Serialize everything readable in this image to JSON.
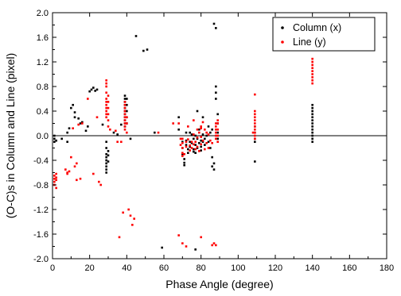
{
  "chart_data": {
    "type": "scatter",
    "title": "",
    "xlabel": "Phase Angle (degree)",
    "ylabel": "(O-C)s in Column and Line (pixel)",
    "xlim": [
      0,
      180
    ],
    "ylim": [
      -2.0,
      2.0
    ],
    "x_ticks": [
      0,
      20,
      40,
      60,
      80,
      100,
      120,
      140,
      160,
      180
    ],
    "x_tick_labels": [
      "0",
      "20",
      "40",
      "60",
      "80",
      "100",
      "120",
      "140",
      "160",
      "180"
    ],
    "y_ticks": [
      -2.0,
      -1.6,
      -1.2,
      -0.8,
      -0.4,
      0.0,
      0.4,
      0.8,
      1.2,
      1.6,
      2.0
    ],
    "y_tick_labels": [
      "-2.0",
      "-1.6",
      "-1.2",
      "-0.8",
      "-0.4",
      "0.0",
      "0.4",
      "0.8",
      "1.2",
      "1.6",
      "2.0"
    ],
    "reference_line_y": 0,
    "grid": false,
    "legend_position": "top-right",
    "series": [
      {
        "name": "Column (x)",
        "color": "#000000",
        "points": [
          [
            1,
            0.0
          ],
          [
            1,
            -0.05
          ],
          [
            1,
            -0.1
          ],
          [
            2,
            -0.08
          ],
          [
            5,
            -0.05
          ],
          [
            8,
            -0.1
          ],
          [
            8,
            0.05
          ],
          [
            9,
            0.12
          ],
          [
            10,
            0.45
          ],
          [
            11,
            0.5
          ],
          [
            12,
            0.38
          ],
          [
            12,
            0.3
          ],
          [
            14,
            0.28
          ],
          [
            15,
            0.2
          ],
          [
            16,
            0.22
          ],
          [
            18,
            0.08
          ],
          [
            19,
            0.15
          ],
          [
            20,
            0.72
          ],
          [
            21,
            0.75
          ],
          [
            22,
            0.78
          ],
          [
            23,
            0.73
          ],
          [
            24,
            0.75
          ],
          [
            27,
            0.18
          ],
          [
            29,
            -0.1
          ],
          [
            29,
            -0.2
          ],
          [
            29,
            -0.3
          ],
          [
            29,
            -0.35
          ],
          [
            29,
            -0.4
          ],
          [
            29,
            -0.45
          ],
          [
            29,
            -0.5
          ],
          [
            29,
            -0.55
          ],
          [
            29,
            -0.6
          ],
          [
            30,
            -0.25
          ],
          [
            30,
            -0.32
          ],
          [
            30,
            -0.42
          ],
          [
            33,
            0.05
          ],
          [
            35,
            0.02
          ],
          [
            37,
            0.18
          ],
          [
            39,
            0.65
          ],
          [
            39,
            0.6
          ],
          [
            39,
            0.55
          ],
          [
            39,
            0.5
          ],
          [
            39,
            0.45
          ],
          [
            39,
            0.4
          ],
          [
            39,
            0.35
          ],
          [
            39,
            0.3
          ],
          [
            39,
            0.25
          ],
          [
            39,
            0.2
          ],
          [
            39,
            0.15
          ],
          [
            40,
            0.6
          ],
          [
            40,
            0.5
          ],
          [
            40,
            0.4
          ],
          [
            40,
            0.3
          ],
          [
            40,
            0.2
          ],
          [
            42,
            -0.05
          ],
          [
            45,
            1.62
          ],
          [
            49,
            1.38
          ],
          [
            51,
            1.4
          ],
          [
            55,
            0.05
          ],
          [
            59,
            -1.82
          ],
          [
            68,
            0.3
          ],
          [
            68,
            0.1
          ],
          [
            70,
            -0.1
          ],
          [
            70,
            -0.2
          ],
          [
            70,
            -0.3
          ],
          [
            71,
            -0.38
          ],
          [
            71,
            -0.44
          ],
          [
            71,
            -0.48
          ],
          [
            72,
            0.05
          ],
          [
            72,
            -0.08
          ],
          [
            72,
            -0.15
          ],
          [
            73,
            -0.22
          ],
          [
            73,
            -0.28
          ],
          [
            74,
            0.05
          ],
          [
            74,
            -0.1
          ],
          [
            74,
            -0.18
          ],
          [
            75,
            0.02
          ],
          [
            75,
            -0.12
          ],
          [
            76,
            -0.05
          ],
          [
            76,
            -0.22
          ],
          [
            76,
            -0.26
          ],
          [
            77,
            0.0
          ],
          [
            77,
            -0.15
          ],
          [
            77,
            -0.28
          ],
          [
            78,
            0.4
          ],
          [
            78,
            -0.05
          ],
          [
            78,
            -0.2
          ],
          [
            79,
            0.1
          ],
          [
            79,
            -0.12
          ],
          [
            80,
            -0.08
          ],
          [
            80,
            -0.18
          ],
          [
            80,
            -0.24
          ],
          [
            81,
            0.3
          ],
          [
            81,
            0.02
          ],
          [
            81,
            -0.1
          ],
          [
            82,
            -0.05
          ],
          [
            82,
            -0.15
          ],
          [
            83,
            0.0
          ],
          [
            84,
            0.15
          ],
          [
            84,
            -0.1
          ],
          [
            85,
            0.05
          ],
          [
            85,
            -0.2
          ],
          [
            86,
            0.1
          ],
          [
            86,
            -0.35
          ],
          [
            86,
            -0.5
          ],
          [
            87,
            -0.45
          ],
          [
            87,
            -0.55
          ],
          [
            77,
            -1.85
          ],
          [
            87,
            1.82
          ],
          [
            88,
            1.75
          ],
          [
            88,
            0.8
          ],
          [
            88,
            0.7
          ],
          [
            88,
            0.6
          ],
          [
            89,
            0.35
          ],
          [
            89,
            0.2
          ],
          [
            89,
            0.05
          ],
          [
            89,
            -0.05
          ],
          [
            109,
            0.15
          ],
          [
            109,
            0.05
          ],
          [
            109,
            -0.05
          ],
          [
            109,
            -0.1
          ],
          [
            109,
            -0.42
          ],
          [
            140,
            0.5
          ],
          [
            140,
            0.45
          ],
          [
            140,
            0.4
          ],
          [
            140,
            0.35
          ],
          [
            140,
            0.3
          ],
          [
            140,
            0.25
          ],
          [
            140,
            0.2
          ],
          [
            140,
            0.15
          ],
          [
            140,
            0.1
          ],
          [
            140,
            0.05
          ],
          [
            140,
            0.0
          ],
          [
            140,
            -0.05
          ],
          [
            140,
            -0.1
          ]
        ]
      },
      {
        "name": "Line (y)",
        "color": "#ff0000",
        "points": [
          [
            1,
            -0.65
          ],
          [
            1,
            -0.7
          ],
          [
            1,
            -0.75
          ],
          [
            1,
            -0.8
          ],
          [
            2,
            -0.62
          ],
          [
            2,
            -0.68
          ],
          [
            2,
            -0.72
          ],
          [
            2,
            -0.85
          ],
          [
            7,
            -0.55
          ],
          [
            8,
            -0.6
          ],
          [
            8,
            -0.62
          ],
          [
            9,
            -0.58
          ],
          [
            10,
            -0.35
          ],
          [
            11,
            0.12
          ],
          [
            12,
            -0.5
          ],
          [
            13,
            -0.45
          ],
          [
            13,
            -0.72
          ],
          [
            14,
            0.18
          ],
          [
            15,
            -0.7
          ],
          [
            16,
            0.2
          ],
          [
            19,
            0.6
          ],
          [
            22,
            -0.62
          ],
          [
            24,
            0.3
          ],
          [
            25,
            -0.75
          ],
          [
            26,
            -0.8
          ],
          [
            29,
            0.9
          ],
          [
            29,
            0.85
          ],
          [
            29,
            0.8
          ],
          [
            29,
            0.7
          ],
          [
            29,
            0.6
          ],
          [
            29,
            0.55
          ],
          [
            29,
            0.5
          ],
          [
            29,
            0.45
          ],
          [
            29,
            0.4
          ],
          [
            29,
            0.35
          ],
          [
            29,
            0.3
          ],
          [
            30,
            0.65
          ],
          [
            30,
            0.55
          ],
          [
            30,
            0.45
          ],
          [
            30,
            0.35
          ],
          [
            30,
            0.25
          ],
          [
            30,
            0.15
          ],
          [
            31,
            0.1
          ],
          [
            34,
            0.08
          ],
          [
            35,
            -0.1
          ],
          [
            37,
            -0.1
          ],
          [
            39,
            0.55
          ],
          [
            39,
            0.5
          ],
          [
            39,
            0.45
          ],
          [
            39,
            0.4
          ],
          [
            39,
            0.35
          ],
          [
            39,
            0.3
          ],
          [
            39,
            0.25
          ],
          [
            39,
            0.2
          ],
          [
            39,
            0.15
          ],
          [
            39,
            0.1
          ],
          [
            40,
            0.05
          ],
          [
            40,
            0.3
          ],
          [
            40,
            0.2
          ],
          [
            38,
            -1.25
          ],
          [
            41,
            -1.2
          ],
          [
            42,
            -1.3
          ],
          [
            43,
            -1.45
          ],
          [
            44,
            -1.35
          ],
          [
            36,
            -1.65
          ],
          [
            57,
            0.05
          ],
          [
            65,
            0.2
          ],
          [
            68,
            -1.62
          ],
          [
            70,
            -1.75
          ],
          [
            72,
            -1.8
          ],
          [
            80,
            -1.65
          ],
          [
            80,
            0.15
          ],
          [
            68,
            0.2
          ],
          [
            69,
            -0.05
          ],
          [
            69,
            -0.15
          ],
          [
            70,
            -0.05
          ],
          [
            70,
            -0.12
          ],
          [
            70,
            -0.2
          ],
          [
            70,
            -0.28
          ],
          [
            70,
            -0.33
          ],
          [
            71,
            -0.3
          ],
          [
            72,
            -0.1
          ],
          [
            72,
            -0.18
          ],
          [
            73,
            0.15
          ],
          [
            73,
            -0.06
          ],
          [
            74,
            -0.16
          ],
          [
            74,
            -0.24
          ],
          [
            75,
            -0.1
          ],
          [
            75,
            -0.2
          ],
          [
            76,
            0.25
          ],
          [
            76,
            0.02
          ],
          [
            76,
            -0.14
          ],
          [
            77,
            -0.1
          ],
          [
            77,
            -0.22
          ],
          [
            78,
            0.1
          ],
          [
            78,
            -0.03
          ],
          [
            78,
            -0.18
          ],
          [
            79,
            0.05
          ],
          [
            79,
            -0.25
          ],
          [
            80,
            0.12
          ],
          [
            80,
            -0.02
          ],
          [
            80,
            -0.14
          ],
          [
            81,
            0.22
          ],
          [
            81,
            -0.08
          ],
          [
            82,
            0.1
          ],
          [
            82,
            -0.22
          ],
          [
            83,
            0.05
          ],
          [
            83,
            -0.12
          ],
          [
            84,
            0.02
          ],
          [
            84,
            -0.2
          ],
          [
            85,
            -0.08
          ],
          [
            86,
            -0.12
          ],
          [
            86,
            -1.78
          ],
          [
            87,
            -1.75
          ],
          [
            88,
            -1.78
          ],
          [
            88,
            0.2
          ],
          [
            88,
            0.15
          ],
          [
            88,
            0.1
          ],
          [
            88,
            0.05
          ],
          [
            88,
            0.0
          ],
          [
            88,
            -0.05
          ],
          [
            89,
            0.25
          ],
          [
            89,
            0.2
          ],
          [
            89,
            0.1
          ],
          [
            89,
            0.0
          ],
          [
            89,
            -0.1
          ],
          [
            108,
            0.05
          ],
          [
            109,
            0.67
          ],
          [
            109,
            0.4
          ],
          [
            109,
            0.35
          ],
          [
            109,
            0.3
          ],
          [
            109,
            0.25
          ],
          [
            109,
            0.2
          ],
          [
            109,
            0.15
          ],
          [
            109,
            0.1
          ],
          [
            109,
            0.05
          ],
          [
            109,
            0.0
          ],
          [
            109,
            -0.05
          ],
          [
            140,
            1.25
          ],
          [
            140,
            1.2
          ],
          [
            140,
            1.15
          ],
          [
            140,
            1.1
          ],
          [
            140,
            1.05
          ],
          [
            140,
            1.0
          ],
          [
            140,
            0.95
          ],
          [
            140,
            0.9
          ],
          [
            140,
            0.85
          ]
        ]
      }
    ]
  }
}
